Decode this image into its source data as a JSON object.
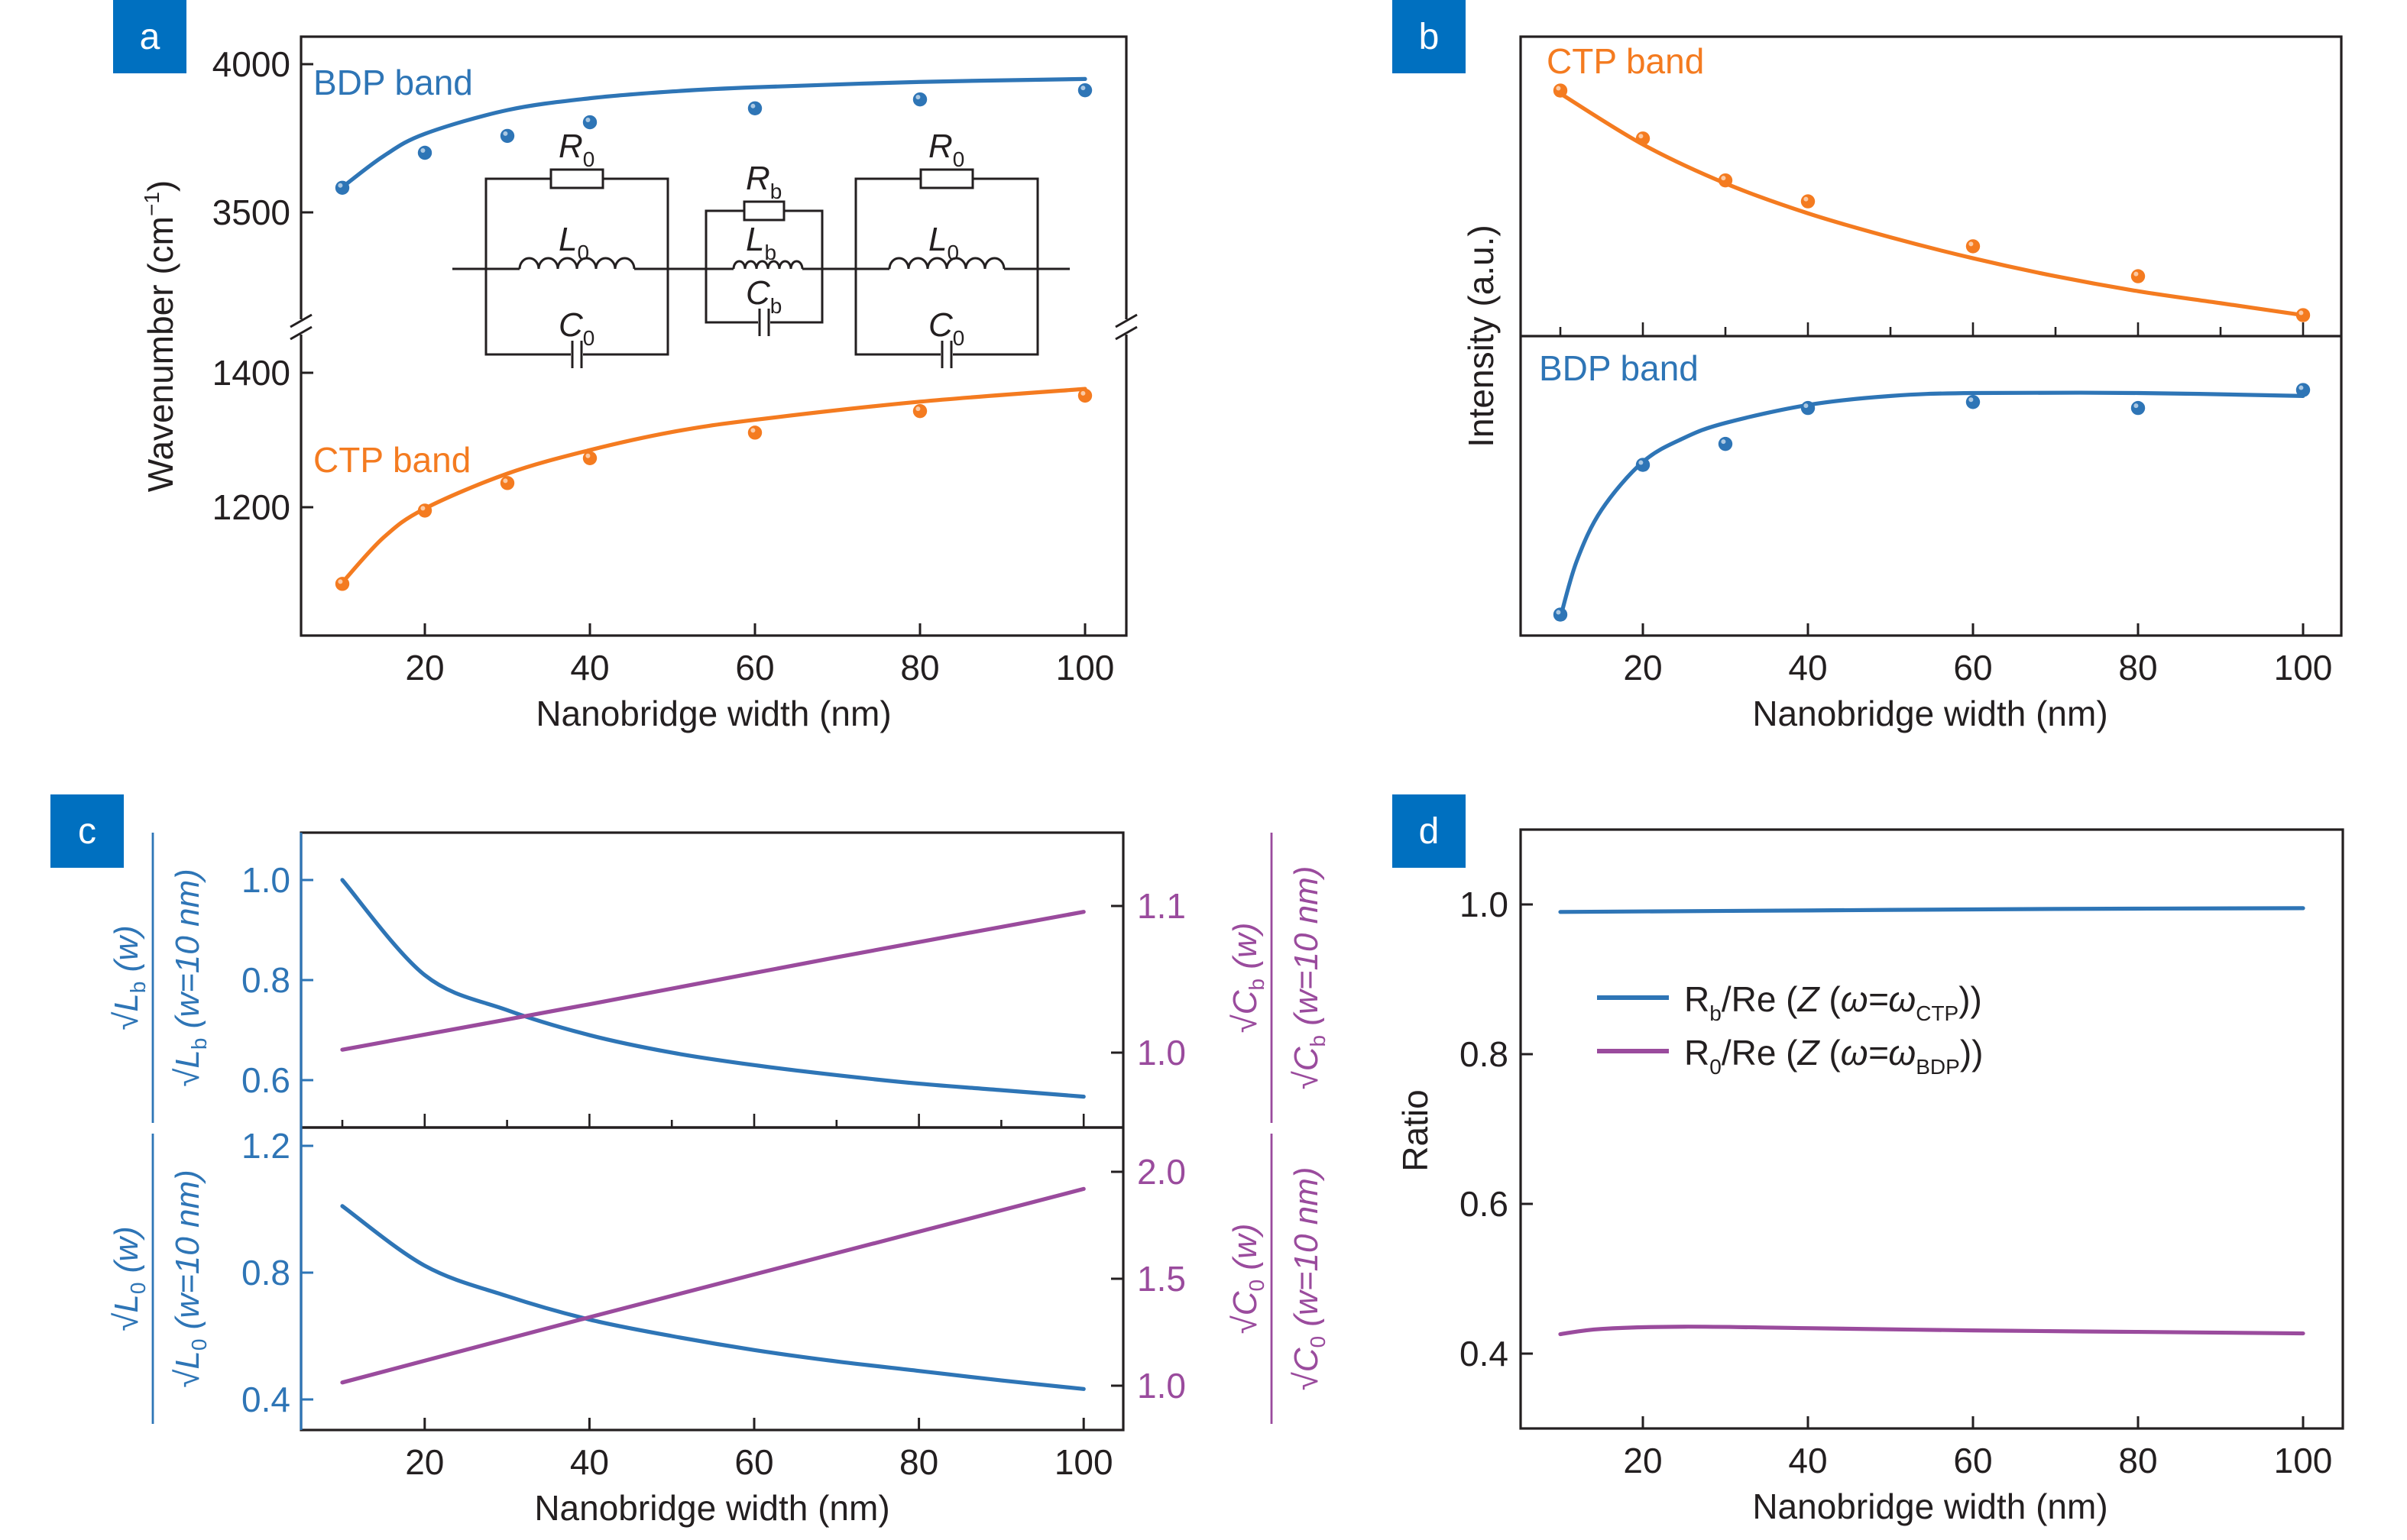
{
  "colors": {
    "blue": "#2e75b6",
    "orange": "#f47b20",
    "purple": "#9a4b9d",
    "panel_label_bg": "#0070c0"
  },
  "panel_labels": [
    "a",
    "b",
    "c",
    "d"
  ],
  "chart_data": [
    {
      "panel": "a",
      "type": "scatter",
      "xlabel": "Nanobridge width (nm)",
      "ylabel": {
        "main": "Wavenumber (cm",
        "sup": "−1",
        "end": ")"
      },
      "x_ticks": [
        20,
        40,
        60,
        80,
        100
      ],
      "y_ticks_upper": [
        3500,
        4000
      ],
      "y_ticks_lower": [
        1200,
        1400
      ],
      "broken_y_axis": true,
      "series": [
        {
          "name": "BDP band",
          "color": "blue",
          "x": [
            10,
            20,
            30,
            40,
            60,
            80,
            100
          ],
          "points": [
            3583,
            3701,
            3758,
            3804,
            3851,
            3881,
            3912
          ],
          "fit_x": [
            10,
            15,
            20,
            30,
            40,
            50,
            60,
            80,
            100
          ],
          "fit": [
            3585,
            3690,
            3765,
            3845,
            3885,
            3908,
            3922,
            3940,
            3950
          ]
        },
        {
          "name": "CTP band",
          "color": "orange",
          "x": [
            10,
            20,
            30,
            40,
            60,
            80,
            100
          ],
          "points": [
            1086,
            1195,
            1236,
            1273,
            1311,
            1343,
            1366
          ],
          "fit_x": [
            10,
            15,
            20,
            30,
            40,
            50,
            60,
            80,
            100
          ],
          "fit": [
            1088,
            1155,
            1198,
            1250,
            1285,
            1312,
            1330,
            1357,
            1376
          ]
        }
      ],
      "inset_circuit": {
        "left": {
          "R": [
            "R",
            "0"
          ],
          "L": [
            "L",
            "0"
          ],
          "C": [
            "C",
            "0"
          ]
        },
        "bridge": {
          "R": [
            "R",
            "b"
          ],
          "L": [
            "L",
            "b"
          ],
          "C": [
            "C",
            "b"
          ]
        },
        "right": {
          "R": [
            "R",
            "0"
          ],
          "L": [
            "L",
            "0"
          ],
          "C": [
            "C",
            "0"
          ]
        }
      }
    },
    {
      "panel": "b",
      "type": "scatter",
      "xlabel": "Nanobridge width (nm)",
      "ylabel": "Intensity (a.u.)",
      "x_ticks": [
        20,
        40,
        60,
        80,
        100
      ],
      "y_scale": "arbitrary units, relative (0–1) within each stacked subplot",
      "series": [
        {
          "name": "CTP band",
          "color": "orange",
          "subplot": "top",
          "x": [
            10,
            20,
            30,
            40,
            60,
            80,
            100
          ],
          "points": [
            0.82,
            0.66,
            0.52,
            0.45,
            0.3,
            0.2,
            0.07
          ],
          "fit_x": [
            10,
            20,
            30,
            40,
            50,
            60,
            70,
            80,
            90,
            100
          ],
          "fit": [
            0.81,
            0.64,
            0.51,
            0.41,
            0.33,
            0.26,
            0.2,
            0.15,
            0.11,
            0.07
          ]
        },
        {
          "name": "BDP band",
          "color": "blue",
          "subplot": "bottom",
          "x": [
            10,
            20,
            30,
            40,
            60,
            80,
            100
          ],
          "points": [
            0.07,
            0.57,
            0.64,
            0.76,
            0.78,
            0.76,
            0.82
          ],
          "fit_x": [
            10,
            12,
            15,
            20,
            25,
            30,
            40,
            50,
            60,
            80,
            100
          ],
          "fit": [
            0.06,
            0.25,
            0.42,
            0.58,
            0.66,
            0.71,
            0.77,
            0.8,
            0.81,
            0.81,
            0.8
          ]
        }
      ]
    },
    {
      "panel": "c",
      "type": "line",
      "xlabel": "Nanobridge width (nm)",
      "x_ticks": [
        20,
        40,
        60,
        80,
        100
      ],
      "top": {
        "ylabel_left": {
          "sym": "L",
          "sub": "b",
          "num_arg": "(w)",
          "den_arg": "(w=10 nm)"
        },
        "ylabel_right": {
          "sym": "C",
          "sub": "b",
          "num_arg": "(w)",
          "den_arg": "(w=10 nm)"
        },
        "y_ticks_left": [
          "1.0",
          "0.8",
          "0.6"
        ],
        "y_ticks_right": [
          "1.1",
          "1.0"
        ],
        "series": [
          {
            "axis": "left",
            "color": "blue",
            "x": [
              10,
              20,
              30,
              40,
              50,
              60,
              70,
              80,
              90,
              100
            ],
            "y": [
              1.0,
              0.81,
              0.74,
              0.69,
              0.655,
              0.63,
              0.61,
              0.593,
              0.58,
              0.567
            ]
          },
          {
            "axis": "right",
            "color": "purple",
            "x": [
              10,
              40,
              70,
              100
            ],
            "y": [
              1.002,
              1.033,
              1.065,
              1.096
            ]
          }
        ]
      },
      "bottom": {
        "ylabel_left": {
          "sym": "L",
          "sub": "0",
          "num_arg": "(w)",
          "den_arg": "(w=10 nm)"
        },
        "ylabel_right": {
          "sym": "C",
          "sub": "0",
          "num_arg": "(w)",
          "den_arg": "(w=10 nm)"
        },
        "y_ticks_left": [
          "1.2",
          "0.8",
          "0.4"
        ],
        "y_ticks_right": [
          "2.0",
          "1.5",
          "1.0"
        ],
        "series": [
          {
            "axis": "left",
            "color": "blue",
            "x": [
              10,
              20,
              30,
              40,
              50,
              60,
              70,
              80,
              90,
              100
            ],
            "y": [
              1.01,
              0.822,
              0.726,
              0.652,
              0.6,
              0.556,
              0.52,
              0.49,
              0.46,
              0.433
            ]
          },
          {
            "axis": "right",
            "color": "purple",
            "x": [
              10,
              40,
              70,
              100
            ],
            "y": [
              1.015,
              1.32,
              1.62,
              1.92
            ]
          }
        ]
      }
    },
    {
      "panel": "d",
      "type": "line",
      "xlabel": "Nanobridge width (nm)",
      "ylabel": "Ratio",
      "x_ticks": [
        20,
        40,
        60,
        80,
        100
      ],
      "y_ticks": [
        "1.0",
        "0.8",
        "0.6",
        "0.4"
      ],
      "legend_position": "upper-left",
      "series": [
        {
          "color": "blue",
          "legend": {
            "a": "R",
            "a_sub": "b",
            "b": "/Re (",
            "z": "Z",
            "c": " (",
            "w": "ω=ω",
            "w_sub": "CTP",
            "d": "))"
          },
          "x": [
            10,
            40,
            70,
            100
          ],
          "y": [
            0.99,
            0.992,
            0.994,
            0.995
          ]
        },
        {
          "color": "purple",
          "legend": {
            "a": "R",
            "a_sub": "0",
            "b": "/Re (",
            "z": "Z",
            "c": " (",
            "w": "ω=ω",
            "w_sub": "BDP",
            "d": "))"
          },
          "x": [
            10,
            15,
            25,
            40,
            60,
            80,
            100
          ],
          "y": [
            0.426,
            0.433,
            0.436,
            0.434,
            0.431,
            0.429,
            0.427
          ]
        }
      ]
    }
  ]
}
